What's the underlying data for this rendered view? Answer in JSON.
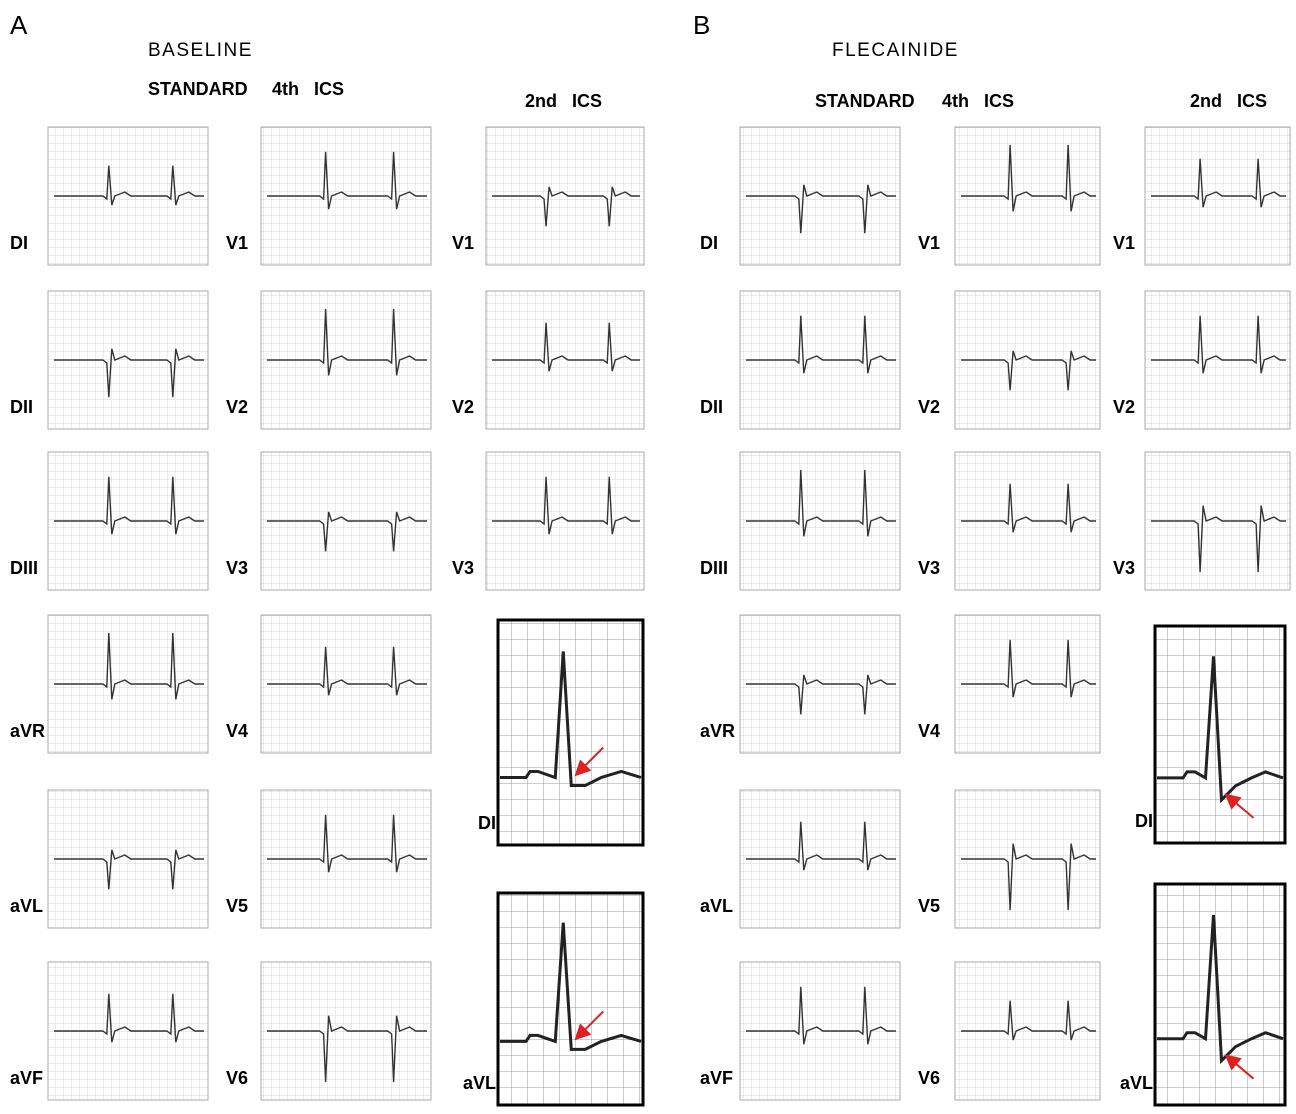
{
  "panels": [
    {
      "letter": "A",
      "title": "BASELINE",
      "headers": [
        "STANDARD",
        "4th ICS",
        "2nd ICS"
      ],
      "standard": [
        "DI",
        "DII",
        "DIII",
        "aVR",
        "aVL",
        "aVF"
      ],
      "ics4": [
        "V1",
        "V2",
        "V3",
        "V4",
        "V5",
        "V6"
      ],
      "ics2": [
        "V1",
        "V2",
        "V3"
      ],
      "zoom": [
        "DI",
        "aVL"
      ]
    },
    {
      "letter": "B",
      "title": "FLECAINIDE",
      "headers": [
        "STANDARD",
        "4th ICS",
        "2nd ICS"
      ],
      "standard": [
        "DI",
        "DII",
        "DIII",
        "aVR",
        "aVL",
        "aVF"
      ],
      "ics4": [
        "V1",
        "V2",
        "V3",
        "V4",
        "V5",
        "V6"
      ],
      "ics2": [
        "V1",
        "V2",
        "V3"
      ],
      "zoom": [
        "DI",
        "aVL"
      ]
    }
  ]
}
